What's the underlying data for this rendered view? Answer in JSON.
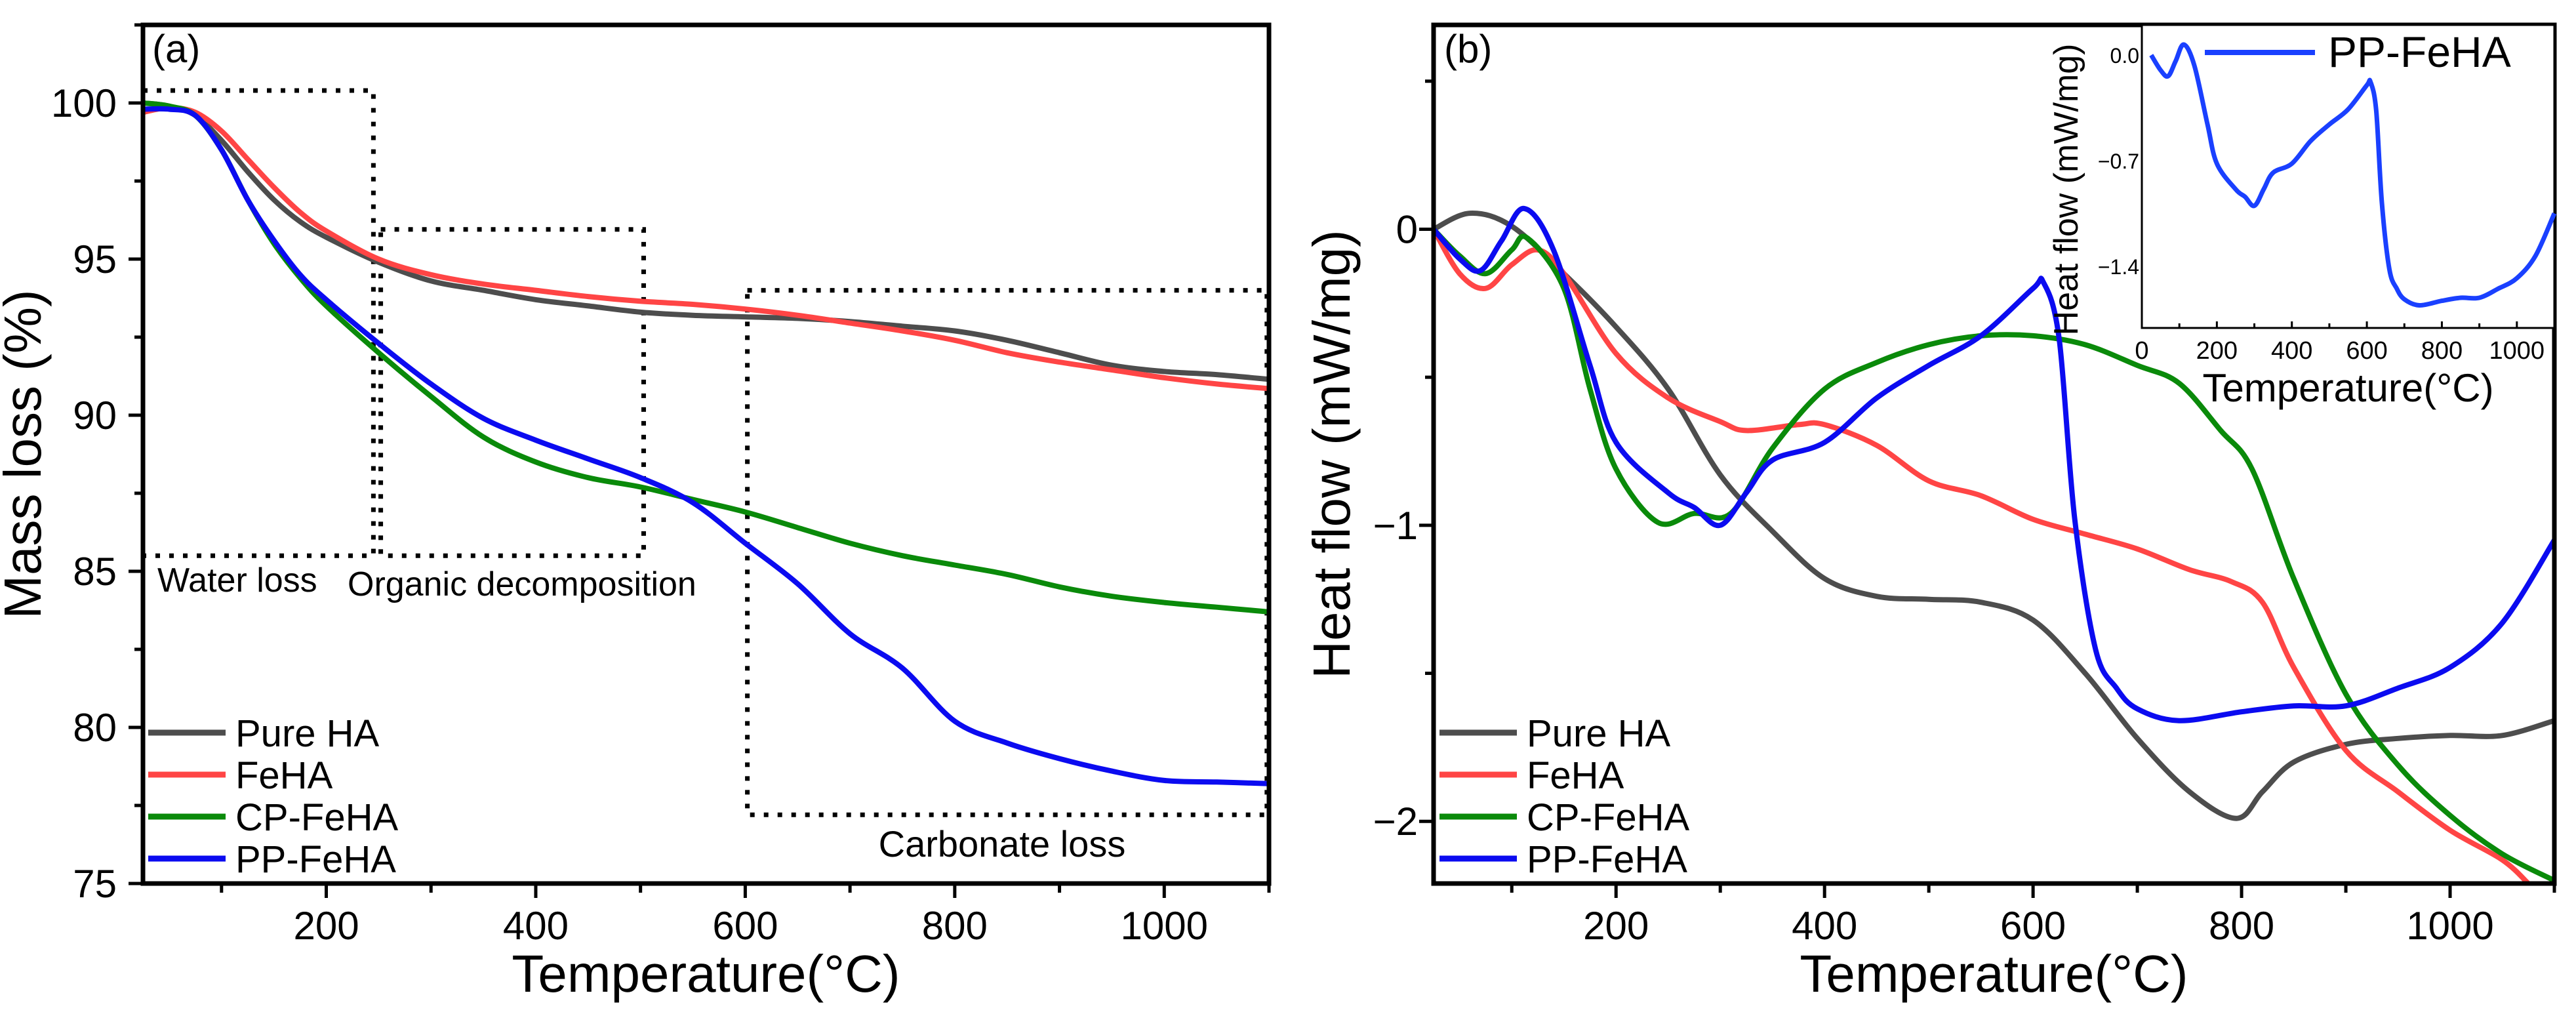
{
  "chart_data": [
    {
      "type": "line",
      "panel_label": "(a)",
      "xlabel": "Temperature(°C)",
      "ylabel": "Mass loss (%)",
      "xlim": [
        25,
        1100
      ],
      "ylim": [
        75,
        102.5
      ],
      "xticks": [
        "200",
        "400",
        "600",
        "800",
        "1000"
      ],
      "xtick_values": [
        200,
        400,
        600,
        800,
        1000
      ],
      "yticks": [
        "75",
        "80",
        "85",
        "90",
        "95",
        "100"
      ],
      "ytick_values": [
        75,
        80,
        85,
        90,
        95,
        100
      ],
      "grid": false,
      "legend_position": "bottom-left",
      "series": [
        {
          "name": "Pure HA",
          "color": "#4d4d4d",
          "points": [
            [
              25,
              100
            ],
            [
              50,
              99.9
            ],
            [
              75,
              99.6
            ],
            [
              100,
              98.8
            ],
            [
              125,
              97.8
            ],
            [
              150,
              96.9
            ],
            [
              175,
              96.2
            ],
            [
              200,
              95.7
            ],
            [
              250,
              94.9
            ],
            [
              300,
              94.3
            ],
            [
              350,
              94.0
            ],
            [
              400,
              93.7
            ],
            [
              450,
              93.5
            ],
            [
              500,
              93.3
            ],
            [
              550,
              93.2
            ],
            [
              600,
              93.15
            ],
            [
              650,
              93.1
            ],
            [
              700,
              93.0
            ],
            [
              750,
              92.85
            ],
            [
              800,
              92.7
            ],
            [
              850,
              92.4
            ],
            [
              900,
              92.0
            ],
            [
              950,
              91.6
            ],
            [
              1000,
              91.4
            ],
            [
              1050,
              91.3
            ],
            [
              1100,
              91.15
            ]
          ]
        },
        {
          "name": "FeHA",
          "color": "#ff4545",
          "points": [
            [
              25,
              99.7
            ],
            [
              50,
              99.85
            ],
            [
              75,
              99.7
            ],
            [
              100,
              99.1
            ],
            [
              125,
              98.2
            ],
            [
              150,
              97.3
            ],
            [
              175,
              96.5
            ],
            [
              200,
              95.9
            ],
            [
              250,
              95.0
            ],
            [
              300,
              94.5
            ],
            [
              350,
              94.2
            ],
            [
              400,
              94.0
            ],
            [
              450,
              93.8
            ],
            [
              500,
              93.65
            ],
            [
              550,
              93.55
            ],
            [
              600,
              93.4
            ],
            [
              650,
              93.2
            ],
            [
              700,
              92.95
            ],
            [
              750,
              92.7
            ],
            [
              800,
              92.4
            ],
            [
              850,
              92.0
            ],
            [
              900,
              91.7
            ],
            [
              950,
              91.45
            ],
            [
              1000,
              91.2
            ],
            [
              1050,
              91.0
            ],
            [
              1100,
              90.85
            ]
          ]
        },
        {
          "name": "CP-FeHA",
          "color": "#0a8a0a",
          "points": [
            [
              25,
              100
            ],
            [
              50,
              99.9
            ],
            [
              75,
              99.6
            ],
            [
              100,
              98.5
            ],
            [
              125,
              96.9
            ],
            [
              150,
              95.5
            ],
            [
              175,
              94.4
            ],
            [
              200,
              93.5
            ],
            [
              250,
              92.0
            ],
            [
              300,
              90.6
            ],
            [
              350,
              89.3
            ],
            [
              400,
              88.5
            ],
            [
              450,
              88.0
            ],
            [
              500,
              87.7
            ],
            [
              550,
              87.3
            ],
            [
              600,
              86.9
            ],
            [
              650,
              86.4
            ],
            [
              700,
              85.9
            ],
            [
              750,
              85.5
            ],
            [
              800,
              85.2
            ],
            [
              850,
              84.9
            ],
            [
              900,
              84.5
            ],
            [
              950,
              84.2
            ],
            [
              1000,
              84.0
            ],
            [
              1050,
              83.85
            ],
            [
              1100,
              83.7
            ]
          ]
        },
        {
          "name": "PP-FeHA",
          "color": "#0b0bf0",
          "points": [
            [
              25,
              99.8
            ],
            [
              50,
              99.8
            ],
            [
              75,
              99.6
            ],
            [
              100,
              98.5
            ],
            [
              125,
              96.9
            ],
            [
              150,
              95.6
            ],
            [
              175,
              94.5
            ],
            [
              200,
              93.7
            ],
            [
              250,
              92.3
            ],
            [
              300,
              91.0
            ],
            [
              350,
              89.9
            ],
            [
              400,
              89.2
            ],
            [
              450,
              88.6
            ],
            [
              500,
              88.0
            ],
            [
              550,
              87.2
            ],
            [
              600,
              85.9
            ],
            [
              650,
              84.6
            ],
            [
              700,
              83.0
            ],
            [
              750,
              81.9
            ],
            [
              800,
              80.2
            ],
            [
              850,
              79.5
            ],
            [
              900,
              79.0
            ],
            [
              950,
              78.6
            ],
            [
              1000,
              78.3
            ],
            [
              1050,
              78.25
            ],
            [
              1100,
              78.2
            ]
          ]
        }
      ],
      "annotations": [
        {
          "text": "Water loss",
          "box_x": [
            25,
            245
          ],
          "box_y": [
            85.5,
            100.4
          ]
        },
        {
          "text": "Organic decomposition",
          "box_x": [
            252,
            503
          ],
          "box_y": [
            85.5,
            95.95
          ]
        },
        {
          "text": "Carbonate loss",
          "box_x": [
            602,
            1098
          ],
          "box_y": [
            77.2,
            94.0
          ]
        }
      ]
    },
    {
      "type": "line",
      "panel_label": "(b)",
      "xlabel": "Temperature(°C)",
      "ylabel": "Heat flow (mW/mg)",
      "xlim": [
        25,
        1100
      ],
      "ylim": [
        -2.21,
        0.69
      ],
      "xticks": [
        "200",
        "400",
        "600",
        "800",
        "1000"
      ],
      "xtick_values": [
        200,
        400,
        600,
        800,
        1000
      ],
      "yticks": [
        "−2",
        "−1",
        "0"
      ],
      "ytick_values": [
        -2,
        -1,
        0
      ],
      "grid": false,
      "legend_position": "bottom-left",
      "series": [
        {
          "name": "Pure HA",
          "color": "#4d4d4d",
          "points": [
            [
              25,
              0
            ],
            [
              60,
              0.054
            ],
            [
              100,
              0.01
            ],
            [
              150,
              -0.15
            ],
            [
              200,
              -0.33
            ],
            [
              250,
              -0.54
            ],
            [
              300,
              -0.83
            ],
            [
              350,
              -1.02
            ],
            [
              400,
              -1.18
            ],
            [
              450,
              -1.24
            ],
            [
              500,
              -1.25
            ],
            [
              550,
              -1.26
            ],
            [
              600,
              -1.32
            ],
            [
              650,
              -1.5
            ],
            [
              700,
              -1.72
            ],
            [
              750,
              -1.9
            ],
            [
              795,
              -1.99
            ],
            [
              820,
              -1.9
            ],
            [
              850,
              -1.8
            ],
            [
              900,
              -1.74
            ],
            [
              950,
              -1.72
            ],
            [
              1000,
              -1.71
            ],
            [
              1050,
              -1.71
            ],
            [
              1100,
              -1.66
            ]
          ]
        },
        {
          "name": "FeHA",
          "color": "#ff4545",
          "points": [
            [
              25,
              0
            ],
            [
              50,
              -0.15
            ],
            [
              75,
              -0.2
            ],
            [
              100,
              -0.12
            ],
            [
              125,
              -0.07
            ],
            [
              150,
              -0.15
            ],
            [
              200,
              -0.42
            ],
            [
              250,
              -0.57
            ],
            [
              300,
              -0.65
            ],
            [
              325,
              -0.68
            ],
            [
              375,
              -0.66
            ],
            [
              400,
              -0.66
            ],
            [
              450,
              -0.73
            ],
            [
              500,
              -0.85
            ],
            [
              550,
              -0.9
            ],
            [
              600,
              -0.98
            ],
            [
              650,
              -1.03
            ],
            [
              700,
              -1.08
            ],
            [
              750,
              -1.15
            ],
            [
              790,
              -1.19
            ],
            [
              820,
              -1.26
            ],
            [
              850,
              -1.48
            ],
            [
              900,
              -1.76
            ],
            [
              950,
              -1.9
            ],
            [
              1000,
              -2.03
            ],
            [
              1050,
              -2.13
            ],
            [
              1075,
              -2.21
            ]
          ]
        },
        {
          "name": "CP-FeHA",
          "color": "#0a8a0a",
          "points": [
            [
              25,
              0
            ],
            [
              50,
              -0.09
            ],
            [
              75,
              -0.15
            ],
            [
              100,
              -0.07
            ],
            [
              115,
              -0.03
            ],
            [
              150,
              -0.2
            ],
            [
              175,
              -0.54
            ],
            [
              200,
              -0.81
            ],
            [
              240,
              -0.99
            ],
            [
              275,
              -0.96
            ],
            [
              310,
              -0.96
            ],
            [
              350,
              -0.74
            ],
            [
              400,
              -0.54
            ],
            [
              450,
              -0.45
            ],
            [
              500,
              -0.39
            ],
            [
              550,
              -0.36
            ],
            [
              600,
              -0.36
            ],
            [
              650,
              -0.39
            ],
            [
              700,
              -0.46
            ],
            [
              740,
              -0.52
            ],
            [
              780,
              -0.68
            ],
            [
              810,
              -0.81
            ],
            [
              850,
              -1.18
            ],
            [
              900,
              -1.57
            ],
            [
              950,
              -1.81
            ],
            [
              1000,
              -1.98
            ],
            [
              1050,
              -2.11
            ],
            [
              1100,
              -2.2
            ]
          ]
        },
        {
          "name": "PP-FeHA",
          "color": "#0b0bf0",
          "points": [
            [
              25,
              0
            ],
            [
              50,
              -0.1
            ],
            [
              70,
              -0.14
            ],
            [
              90,
              -0.04
            ],
            [
              112,
              0.07
            ],
            [
              140,
              -0.07
            ],
            [
              175,
              -0.46
            ],
            [
              200,
              -0.72
            ],
            [
              250,
              -0.89
            ],
            [
              275,
              -0.94
            ],
            [
              300,
              -1.0
            ],
            [
              325,
              -0.89
            ],
            [
              350,
              -0.78
            ],
            [
              400,
              -0.72
            ],
            [
              450,
              -0.57
            ],
            [
              500,
              -0.46
            ],
            [
              550,
              -0.36
            ],
            [
              600,
              -0.2
            ],
            [
              610,
              -0.18
            ],
            [
              625,
              -0.37
            ],
            [
              640,
              -0.98
            ],
            [
              660,
              -1.42
            ],
            [
              680,
              -1.55
            ],
            [
              700,
              -1.62
            ],
            [
              740,
              -1.66
            ],
            [
              800,
              -1.63
            ],
            [
              850,
              -1.61
            ],
            [
              900,
              -1.61
            ],
            [
              950,
              -1.55
            ],
            [
              1000,
              -1.48
            ],
            [
              1050,
              -1.33
            ],
            [
              1100,
              -1.05
            ]
          ]
        }
      ],
      "inset": {
        "type": "line",
        "xlabel": "Temperature(°C)",
        "ylabel": "Heat flow (mW/mg)",
        "xlim": [
          0,
          1100
        ],
        "ylim": [
          -1.81,
          0.2
        ],
        "xticks": [
          "0",
          "200",
          "400",
          "600",
          "800",
          "1000"
        ],
        "xtick_values": [
          0,
          200,
          400,
          600,
          800,
          1000
        ],
        "yticks": [
          "0.0",
          "−0.7",
          "−1.4"
        ],
        "ytick_values": [
          0,
          -0.7,
          -1.4
        ],
        "legend_position": "top-right",
        "series_name": "PP-FeHA",
        "color": "#1a40ff"
      }
    }
  ]
}
